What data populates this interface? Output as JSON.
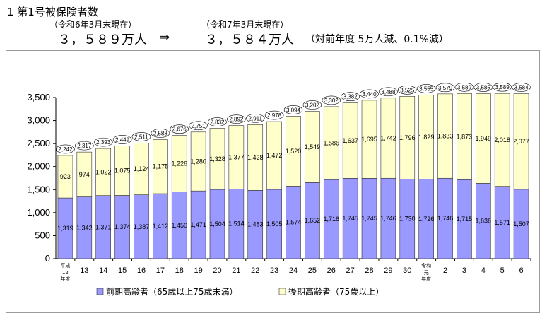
{
  "header": {
    "title": "1 第1号被保険者数",
    "prev_date": "（令和6年3月末現在）",
    "curr_date": "（令和7年3月末現在）",
    "prev_value": "３，５８９万人",
    "arrow": "⇒",
    "curr_value": "３，５８４万人",
    "change": "（対前年度 5万人減、0.1%減）"
  },
  "chart_data": {
    "type": "bar",
    "stacked": true,
    "categories": [
      "平成12年度",
      "13",
      "14",
      "15",
      "16",
      "17",
      "18",
      "19",
      "20",
      "21",
      "22",
      "23",
      "24",
      "25",
      "26",
      "27",
      "28",
      "29",
      "30",
      "令和元年度",
      "2",
      "3",
      "4",
      "5",
      "6"
    ],
    "category_lines": [
      [
        "平成",
        "12",
        "年度"
      ],
      [
        "13"
      ],
      [
        "14"
      ],
      [
        "15"
      ],
      [
        "16"
      ],
      [
        "17"
      ],
      [
        "18"
      ],
      [
        "19"
      ],
      [
        "20"
      ],
      [
        "21"
      ],
      [
        "22"
      ],
      [
        "23"
      ],
      [
        "24"
      ],
      [
        "25"
      ],
      [
        "26"
      ],
      [
        "27"
      ],
      [
        "28"
      ],
      [
        "29"
      ],
      [
        "30"
      ],
      [
        "令和",
        "元",
        "年度"
      ],
      [
        "2"
      ],
      [
        "3"
      ],
      [
        "4"
      ],
      [
        "5"
      ],
      [
        "6"
      ]
    ],
    "series": [
      {
        "name": "前期高齢者（65歳以上75歳未満）",
        "labels": [
          "1,319",
          "1,342",
          "1,371",
          "1,374",
          "1,387",
          "1,412",
          "1,450",
          "1,471",
          "1,504",
          "1,514",
          "1,483",
          "1,505",
          "1,574",
          "1,652",
          "1,716",
          "1,745",
          "1,745",
          "1,746",
          "1,730",
          "1,726",
          "1,746",
          "1,715",
          "1,636",
          "1,571",
          "1,507"
        ],
        "values": [
          1319,
          1342,
          1371,
          1374,
          1387,
          1412,
          1450,
          1471,
          1504,
          1514,
          1483,
          1505,
          1574,
          1652,
          1716,
          1745,
          1745,
          1746,
          1730,
          1726,
          1746,
          1715,
          1636,
          1571,
          1507
        ]
      },
      {
        "name": "後期高齢者（75歳以上）",
        "labels": [
          "923",
          "974",
          "1,022",
          "1,075",
          "1,124",
          "1,175",
          "1,226",
          "1,280",
          "1,328",
          "1,377",
          "1,428",
          "1,472",
          "1,520",
          "1,549",
          "1,586",
          "1,637",
          "1,695",
          "1,742",
          "1,796",
          "1,829",
          "1,833",
          "1,873",
          "1,949",
          "2,018",
          "2,077"
        ],
        "values": [
          923,
          974,
          1022,
          1075,
          1124,
          1175,
          1226,
          1280,
          1328,
          1377,
          1428,
          1472,
          1520,
          1549,
          1586,
          1637,
          1695,
          1742,
          1796,
          1829,
          1833,
          1873,
          1949,
          2018,
          2077
        ]
      }
    ],
    "totals": [
      2242,
      2317,
      2393,
      2449,
      2511,
      2588,
      2676,
      2751,
      2832,
      2892,
      2911,
      2978,
      3094,
      3202,
      3302,
      3382,
      3440,
      3488,
      3525,
      3555,
      3579,
      3589,
      3585,
      3589,
      3584
    ],
    "ylim": [
      0,
      3500
    ],
    "yticks": [
      "0",
      "500",
      "1,000",
      "1,500",
      "2,000",
      "2,500",
      "3,000",
      "3,500"
    ],
    "ytick_values": [
      0,
      500,
      1000,
      1500,
      2000,
      2500,
      3000,
      3500
    ],
    "legend_position": "bottom",
    "grid": false,
    "colors": {
      "series0": "#9999ff",
      "series1": "#ffffcc",
      "stroke": "#333333"
    }
  }
}
